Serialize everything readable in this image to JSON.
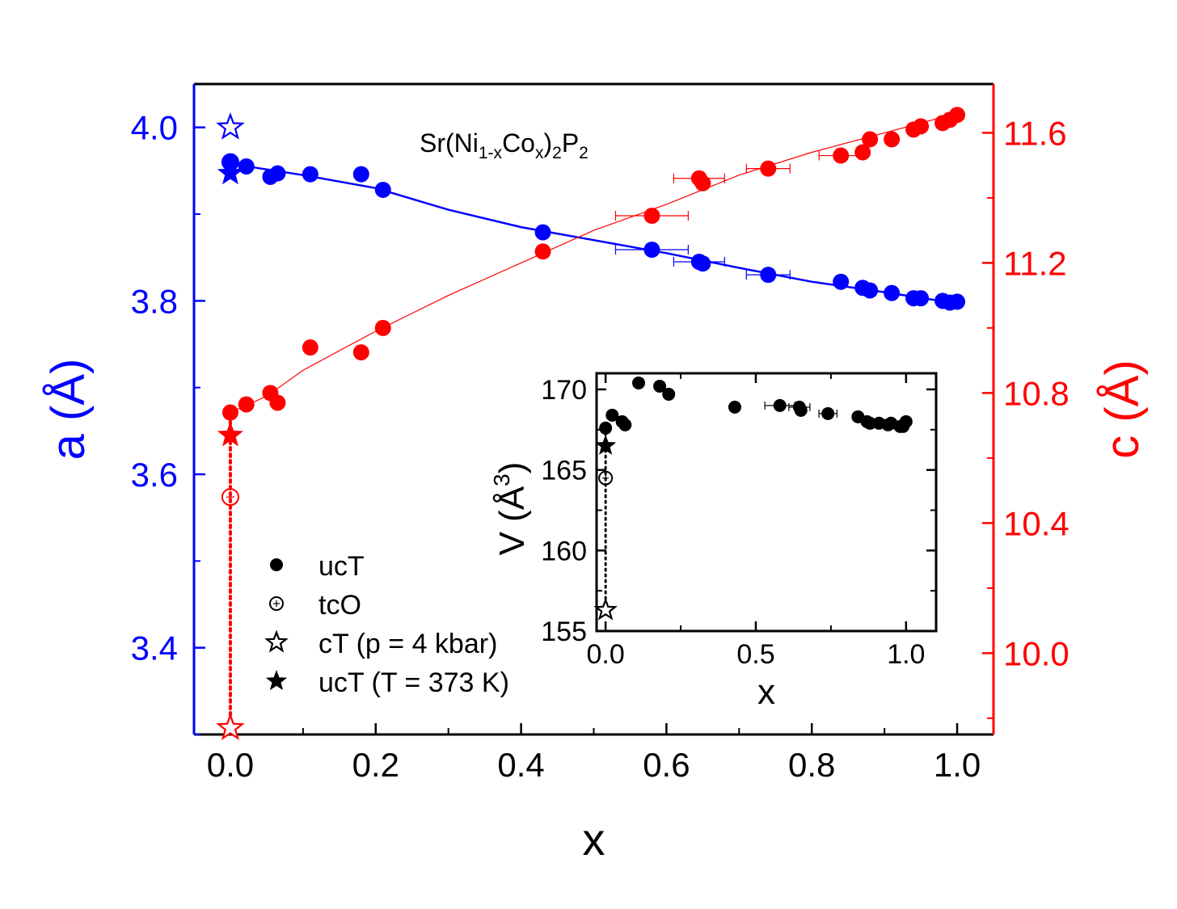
{
  "chart_data": {
    "type": "scatter",
    "title": "Sr(Ni",
    "title_parts": {
      "t1": "Sr(Ni",
      "s1": "1-x",
      "t2": "Co",
      "s2": "x",
      "t3": ")",
      "s3": "2",
      "t4": "P",
      "s4": "2"
    },
    "xlabel": "x",
    "ylabel_left": "a (Å)",
    "ylabel_right": "c (Å)",
    "colors": {
      "a": "#0000ff",
      "c": "#ff0000",
      "inset": "#000000"
    },
    "axes": {
      "x": {
        "min": -0.05,
        "max": 1.05,
        "ticks": [
          0.0,
          0.2,
          0.4,
          0.6,
          0.8,
          1.0
        ],
        "tick_labels": [
          "0.0",
          "0.2",
          "0.4",
          "0.6",
          "0.8",
          "1.0"
        ]
      },
      "y_left": {
        "min": 3.3,
        "max": 4.05,
        "ticks": [
          3.4,
          3.6,
          3.8,
          4.0
        ],
        "tick_labels": [
          "3.4",
          "3.6",
          "3.8",
          "4.0"
        ]
      },
      "y_right": {
        "min": 9.75,
        "max": 11.75,
        "ticks": [
          10.0,
          10.4,
          10.8,
          11.2,
          11.6
        ],
        "tick_labels": [
          "10.0",
          "10.4",
          "10.8",
          "11.2",
          "11.6"
        ]
      }
    },
    "series": [
      {
        "name": "a (ucT)",
        "axis": "left",
        "marker": "filled-circle",
        "color": "#0000ff",
        "points": [
          {
            "x": 0.0,
            "y": 3.96
          },
          {
            "x": 0.022,
            "y": 3.955
          },
          {
            "x": 0.055,
            "y": 3.943
          },
          {
            "x": 0.065,
            "y": 3.947
          },
          {
            "x": 0.11,
            "y": 3.946
          },
          {
            "x": 0.18,
            "y": 3.946
          },
          {
            "x": 0.21,
            "y": 3.928
          },
          {
            "x": 0.43,
            "y": 3.879
          },
          {
            "x": 0.58,
            "y": 3.859,
            "xerr": 0.05
          },
          {
            "x": 0.645,
            "y": 3.845,
            "xerr": 0.035
          },
          {
            "x": 0.65,
            "y": 3.843
          },
          {
            "x": 0.74,
            "y": 3.83,
            "xerr": 0.03
          },
          {
            "x": 0.84,
            "y": 3.822
          },
          {
            "x": 0.87,
            "y": 3.815
          },
          {
            "x": 0.88,
            "y": 3.812
          },
          {
            "x": 0.91,
            "y": 3.809
          },
          {
            "x": 0.94,
            "y": 3.803
          },
          {
            "x": 0.95,
            "y": 3.803
          },
          {
            "x": 0.98,
            "y": 3.8
          },
          {
            "x": 0.99,
            "y": 3.798
          },
          {
            "x": 1.0,
            "y": 3.799
          }
        ]
      },
      {
        "name": "c (ucT)",
        "axis": "right",
        "marker": "filled-circle",
        "color": "#ff0000",
        "points": [
          {
            "x": 0.0,
            "y": 10.74
          },
          {
            "x": 0.022,
            "y": 10.765
          },
          {
            "x": 0.055,
            "y": 10.8
          },
          {
            "x": 0.065,
            "y": 10.77
          },
          {
            "x": 0.11,
            "y": 10.94
          },
          {
            "x": 0.18,
            "y": 10.925
          },
          {
            "x": 0.21,
            "y": 11.0
          },
          {
            "x": 0.43,
            "y": 11.235
          },
          {
            "x": 0.58,
            "y": 11.345,
            "xerr": 0.05
          },
          {
            "x": 0.645,
            "y": 11.46,
            "xerr": 0.035
          },
          {
            "x": 0.65,
            "y": 11.445
          },
          {
            "x": 0.74,
            "y": 11.49,
            "xerr": 0.03
          },
          {
            "x": 0.84,
            "y": 11.53,
            "xerr": 0.03
          },
          {
            "x": 0.87,
            "y": 11.54
          },
          {
            "x": 0.88,
            "y": 11.58
          },
          {
            "x": 0.91,
            "y": 11.58
          },
          {
            "x": 0.94,
            "y": 11.61
          },
          {
            "x": 0.95,
            "y": 11.62
          },
          {
            "x": 0.98,
            "y": 11.63
          },
          {
            "x": 0.99,
            "y": 11.64
          },
          {
            "x": 1.0,
            "y": 11.655
          }
        ]
      },
      {
        "name": "a (tcO)",
        "axis": "left",
        "marker": "open-circle",
        "color": "#0000ff",
        "points": [
          {
            "x": 0.0,
            "y": 3.96
          }
        ]
      },
      {
        "name": "c (tcO)",
        "axis": "right",
        "marker": "open-circle",
        "color": "#ff0000",
        "points": [
          {
            "x": 0.0,
            "y": 10.48
          }
        ]
      },
      {
        "name": "a (cT, p = 4 kbar)",
        "axis": "left",
        "marker": "open-star",
        "color": "#0000ff",
        "points": [
          {
            "x": 0.0,
            "y": 4.0
          }
        ]
      },
      {
        "name": "c (cT, p = 4 kbar)",
        "axis": "right",
        "marker": "open-star",
        "color": "#ff0000",
        "points": [
          {
            "x": 0.0,
            "y": 9.77
          }
        ]
      },
      {
        "name": "a (ucT, T = 373 K)",
        "axis": "left",
        "marker": "filled-star",
        "color": "#0000ff",
        "points": [
          {
            "x": 0.0,
            "y": 3.947
          }
        ]
      },
      {
        "name": "c (ucT, T = 373 K)",
        "axis": "right",
        "marker": "filled-star",
        "color": "#ff0000",
        "points": [
          {
            "x": 0.0,
            "y": 10.67
          }
        ]
      }
    ],
    "fit_lines": [
      {
        "name": "a fit",
        "axis": "left",
        "color": "#0000ff",
        "x": [
          0.0,
          0.1,
          0.2,
          0.3,
          0.4,
          0.5,
          0.6,
          0.7,
          0.8,
          0.9,
          1.0
        ],
        "y": [
          3.958,
          3.945,
          3.93,
          3.905,
          3.885,
          3.87,
          3.855,
          3.838,
          3.822,
          3.81,
          3.797
        ]
      },
      {
        "name": "c fit",
        "axis": "right",
        "color": "#ff0000",
        "x": [
          0.0,
          0.05,
          0.1,
          0.2,
          0.3,
          0.4,
          0.5,
          0.6,
          0.7,
          0.8,
          0.9,
          1.0
        ],
        "y": [
          10.74,
          10.79,
          10.87,
          10.99,
          11.1,
          11.2,
          11.3,
          11.38,
          11.47,
          11.54,
          11.6,
          11.66
        ]
      }
    ],
    "drop_lines": [
      {
        "axis": "left",
        "color": "#ff0000",
        "x": 0.0,
        "y_range_axis": "right",
        "y": [
          9.77,
          10.74
        ]
      }
    ],
    "legend": {
      "position": "bottom-left",
      "entries": [
        {
          "marker": "filled-circle",
          "label": "ucT"
        },
        {
          "marker": "open-circle",
          "label": "tcO"
        },
        {
          "marker": "open-star",
          "label": "cT (p = 4 kbar)"
        },
        {
          "marker": "filled-star",
          "label": "ucT (T = 373 K)"
        }
      ]
    },
    "inset": {
      "type": "scatter",
      "xlabel": "x",
      "ylabel": "V (Å",
      "ylabel_sup": "3",
      "ylabel_close": ")",
      "axes": {
        "x": {
          "min": -0.03,
          "max": 1.1,
          "ticks": [
            0.0,
            0.5,
            1.0
          ],
          "tick_labels": [
            "0.0",
            "0.5",
            "1.0"
          ]
        },
        "y": {
          "min": 155,
          "max": 171,
          "ticks": [
            155,
            160,
            165,
            170
          ],
          "tick_labels": [
            "155",
            "160",
            "165",
            "170"
          ]
        }
      },
      "series": [
        {
          "name": "V (ucT)",
          "marker": "filled-circle",
          "points": [
            {
              "x": 0.0,
              "y": 167.6
            },
            {
              "x": 0.022,
              "y": 168.4
            },
            {
              "x": 0.055,
              "y": 168.0
            },
            {
              "x": 0.065,
              "y": 167.8
            },
            {
              "x": 0.11,
              "y": 170.4
            },
            {
              "x": 0.18,
              "y": 170.2
            },
            {
              "x": 0.21,
              "y": 169.7
            },
            {
              "x": 0.43,
              "y": 168.9
            },
            {
              "x": 0.58,
              "y": 169.0,
              "xerr": 0.05
            },
            {
              "x": 0.645,
              "y": 168.9,
              "xerr": 0.035
            },
            {
              "x": 0.65,
              "y": 168.7
            },
            {
              "x": 0.74,
              "y": 168.5,
              "xerr": 0.03
            },
            {
              "x": 0.84,
              "y": 168.3
            },
            {
              "x": 0.87,
              "y": 168.0
            },
            {
              "x": 0.88,
              "y": 167.9
            },
            {
              "x": 0.91,
              "y": 167.9
            },
            {
              "x": 0.94,
              "y": 167.8
            },
            {
              "x": 0.95,
              "y": 167.9
            },
            {
              "x": 0.98,
              "y": 167.7
            },
            {
              "x": 0.99,
              "y": 167.7
            },
            {
              "x": 1.0,
              "y": 168.0
            }
          ]
        },
        {
          "name": "V (tcO)",
          "marker": "open-circle",
          "points": [
            {
              "x": 0.0,
              "y": 164.5
            }
          ]
        },
        {
          "name": "V (cT, p = 4 kbar)",
          "marker": "open-star",
          "points": [
            {
              "x": 0.0,
              "y": 156.3
            }
          ]
        },
        {
          "name": "V (ucT, T = 373 K)",
          "marker": "filled-star",
          "points": [
            {
              "x": 0.0,
              "y": 166.5
            }
          ]
        }
      ],
      "drop_lines": [
        {
          "x": 0.0,
          "y": [
            156.3,
            167.6
          ]
        }
      ]
    }
  }
}
